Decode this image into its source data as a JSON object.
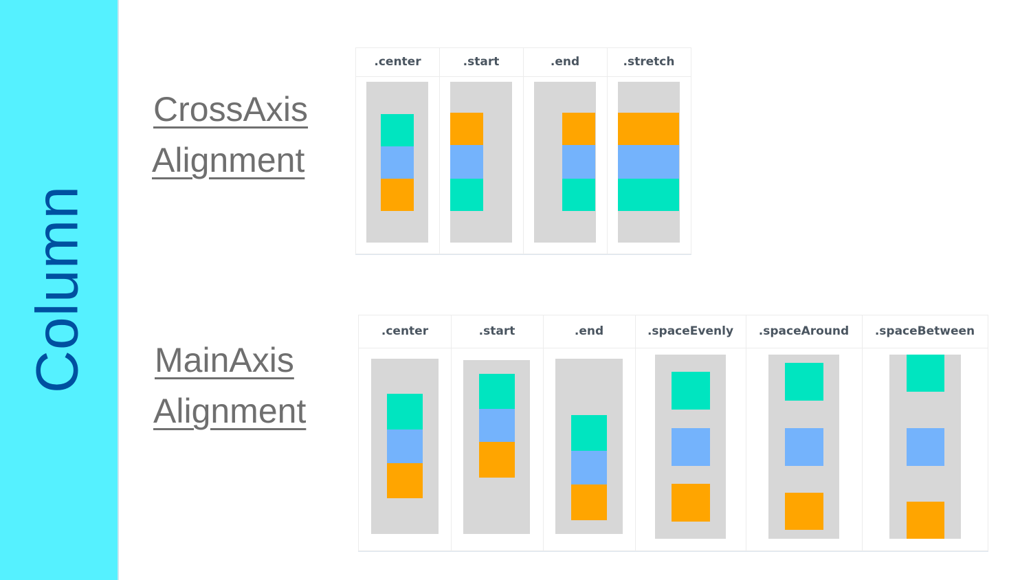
{
  "sidebar": {
    "title": "Column"
  },
  "cross_axis": {
    "heading_line1": "CrossAxis",
    "heading_line2": "Alignment",
    "columns": [
      {
        "label": ".center",
        "items": [
          "teal",
          "blue",
          "orange"
        ]
      },
      {
        "label": ".start",
        "items": [
          "orange",
          "blue",
          "teal"
        ]
      },
      {
        "label": ".end",
        "items": [
          "orange",
          "blue",
          "teal"
        ]
      },
      {
        "label": ".stretch",
        "items": [
          "orange",
          "blue",
          "teal"
        ]
      }
    ]
  },
  "main_axis": {
    "heading_line1": "MainAxis",
    "heading_line2": "Alignment",
    "columns": [
      {
        "label": ".center",
        "items": [
          "teal",
          "blue",
          "orange"
        ]
      },
      {
        "label": ".start",
        "items": [
          "teal",
          "blue",
          "orange"
        ]
      },
      {
        "label": ".end",
        "items": [
          "teal",
          "blue",
          "orange"
        ]
      },
      {
        "label": ".spaceEvenly",
        "items": [
          "teal",
          "blue",
          "orange"
        ]
      },
      {
        "label": ".spaceAround",
        "items": [
          "teal",
          "blue",
          "orange"
        ]
      },
      {
        "label": ".spaceBetween",
        "items": [
          "teal",
          "blue",
          "orange"
        ]
      }
    ]
  },
  "colors": {
    "sidebar": "#55F1FF",
    "title": "#0050A0",
    "teal": "#00E5C0",
    "blue": "#74B3FC",
    "orange": "#FFA500",
    "container": "#D7D7D7"
  }
}
